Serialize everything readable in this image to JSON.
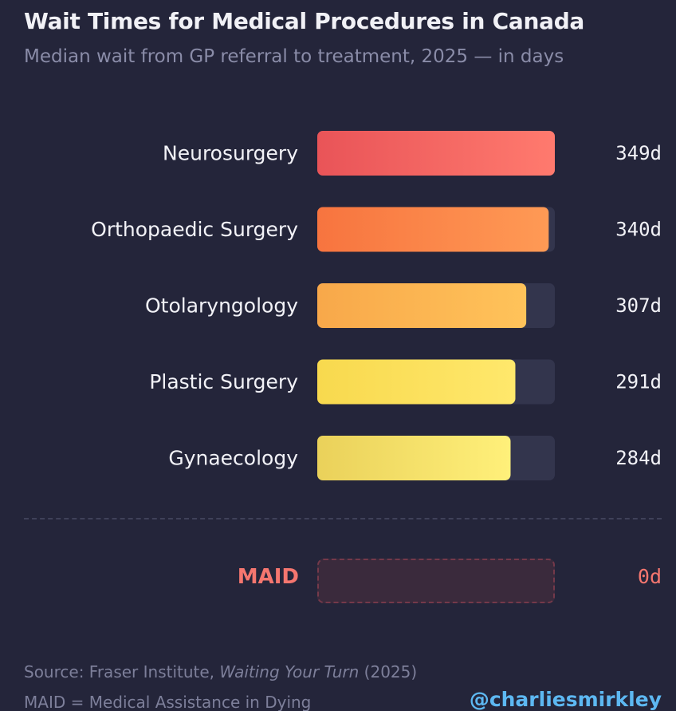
{
  "chart_data": {
    "type": "bar",
    "orientation": "horizontal",
    "title": "Wait Times for Medical Procedures in Canada",
    "subtitle": "Median wait from GP referral to treatment, 2025 — in days",
    "categories": [
      "Neurosurgery",
      "Orthopaedic Surgery",
      "Otolaryngology",
      "Plastic Surgery",
      "Gynaecology"
    ],
    "values": [
      349,
      340,
      307,
      291,
      284
    ],
    "value_labels": [
      "349d",
      "340d",
      "307d",
      "291d",
      "284d"
    ],
    "xlim": [
      0,
      349
    ],
    "grid": false,
    "colors": [
      [
        "#e95458",
        "#ff7a6e"
      ],
      [
        "#f7743f",
        "#ff9a55"
      ],
      [
        "#f8a84a",
        "#ffc35a"
      ],
      [
        "#f8d94e",
        "#ffe86c"
      ],
      [
        "#ead15a",
        "#fff07a"
      ]
    ],
    "track_color": "#33354d",
    "highlight": {
      "label": "MAID",
      "value": 0,
      "value_label": "0d",
      "color": "#f5766f"
    }
  },
  "footer": {
    "source_prefix": "Source: Fraser Institute, ",
    "source_title": "Waiting Your Turn",
    "source_suffix": " (2025)",
    "note": "MAID = Medical Assistance in Dying",
    "handle": "@charliesmirkley"
  }
}
